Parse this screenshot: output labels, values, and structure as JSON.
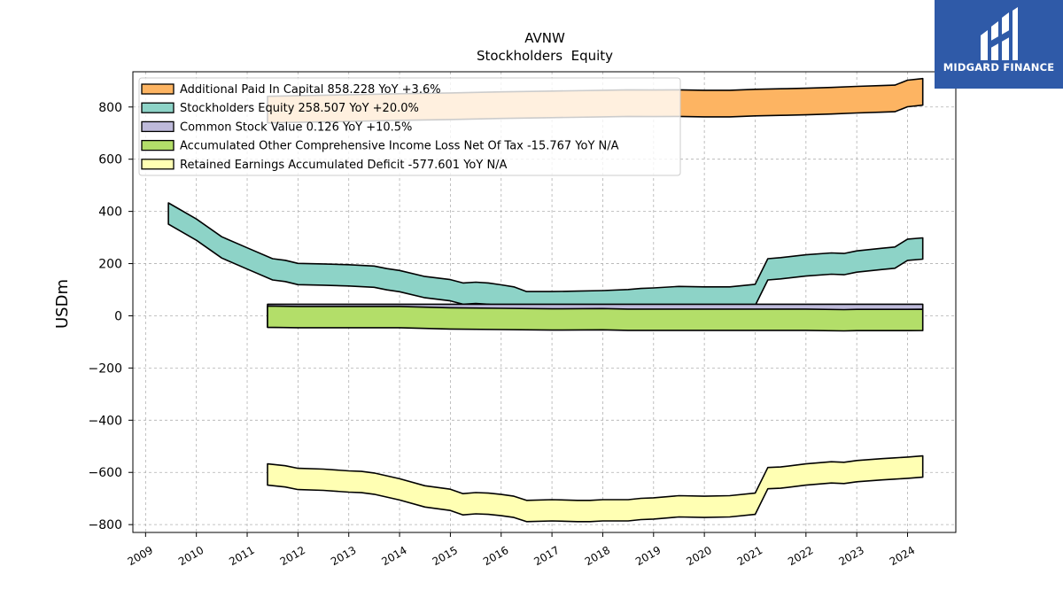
{
  "brand": {
    "name": "MIDGARD FINANCE",
    "color": "#2f5aa8"
  },
  "chart_data": {
    "type": "area",
    "title": "AVNW",
    "subtitle": "Stockholders  Equity",
    "xlabel": "",
    "ylabel": "USDm",
    "xlim": [
      2008.75,
      2024.95
    ],
    "ylim": [
      -830,
      935
    ],
    "yticks": [
      800,
      600,
      400,
      200,
      0,
      -200,
      -400,
      -600,
      -800
    ],
    "ytick_labels": [
      "800",
      "600",
      "400",
      "200",
      "0",
      "−200",
      "−400",
      "−600",
      "−800"
    ],
    "xticks": [
      2009,
      2010,
      2011,
      2012,
      2013,
      2014,
      2015,
      2016,
      2017,
      2018,
      2019,
      2020,
      2021,
      2022,
      2023,
      2024
    ],
    "xtick_labels": [
      "2009",
      "2010",
      "2011",
      "2012",
      "2013",
      "2014",
      "2015",
      "2016",
      "2017",
      "2018",
      "2019",
      "2020",
      "2021",
      "2022",
      "2023",
      "2024"
    ],
    "grid": true,
    "legend_position": "top-left",
    "series": [
      {
        "name": "Additional Paid In Capital",
        "legend": "Additional Paid In Capital  858.228 YoY +3.6%",
        "color": "#fdb462",
        "points": [
          [
            2011.4,
            790
          ],
          [
            2012.0,
            792
          ],
          [
            2013.0,
            796
          ],
          [
            2014.0,
            800
          ],
          [
            2015.0,
            803
          ],
          [
            2016.0,
            807
          ],
          [
            2017.0,
            810
          ],
          [
            2018.0,
            813
          ],
          [
            2018.5,
            815
          ],
          [
            2019.0,
            814
          ],
          [
            2019.5,
            815
          ],
          [
            2020.0,
            813
          ],
          [
            2020.5,
            813
          ],
          [
            2021.0,
            817
          ],
          [
            2021.5,
            819
          ],
          [
            2022.0,
            821
          ],
          [
            2022.5,
            824
          ],
          [
            2023.0,
            828
          ],
          [
            2023.5,
            831
          ],
          [
            2023.75,
            833
          ],
          [
            2024.0,
            852
          ],
          [
            2024.3,
            858
          ]
        ],
        "thickness": 30
      },
      {
        "name": "Stockholders Equity",
        "legend": "Stockholders Equity  258.507 YoY +20.0%",
        "color": "#8dd3c7",
        "points": [
          [
            2009.45,
            392
          ],
          [
            2010.0,
            330
          ],
          [
            2010.5,
            262
          ],
          [
            2011.0,
            220
          ],
          [
            2011.5,
            178
          ],
          [
            2011.75,
            172
          ],
          [
            2012.0,
            160
          ],
          [
            2012.5,
            158
          ],
          [
            2013.0,
            155
          ],
          [
            2013.5,
            150
          ],
          [
            2013.75,
            140
          ],
          [
            2014.0,
            133
          ],
          [
            2014.5,
            110
          ],
          [
            2015.0,
            98
          ],
          [
            2015.25,
            85
          ],
          [
            2015.5,
            88
          ],
          [
            2015.75,
            85
          ],
          [
            2016.0,
            78
          ],
          [
            2016.25,
            70
          ],
          [
            2016.5,
            52
          ],
          [
            2017.0,
            52
          ],
          [
            2017.5,
            54
          ],
          [
            2018.0,
            56
          ],
          [
            2018.5,
            60
          ],
          [
            2018.75,
            64
          ],
          [
            2019.0,
            66
          ],
          [
            2019.5,
            72
          ],
          [
            2020.0,
            70
          ],
          [
            2020.5,
            70
          ],
          [
            2021.0,
            80
          ],
          [
            2021.25,
            178
          ],
          [
            2021.5,
            182
          ],
          [
            2022.0,
            193
          ],
          [
            2022.5,
            200
          ],
          [
            2022.75,
            198
          ],
          [
            2023.0,
            208
          ],
          [
            2023.5,
            218
          ],
          [
            2023.75,
            223
          ],
          [
            2024.0,
            253
          ],
          [
            2024.3,
            258
          ]
        ],
        "thickness": 24
      },
      {
        "name": "Common Stock Value",
        "legend": "Common Stock Value  0.126 YoY +10.5%",
        "color": "#bebada",
        "points": [
          [
            2011.4,
            0.1
          ],
          [
            2024.3,
            0.126
          ]
        ],
        "thickness": 26
      },
      {
        "name": "Accumulated Other Comprehensive Income Loss Net Of Tax",
        "legend": "Accumulated Other Comprehensive Income Loss Net Of Tax  -15.767 YoY N/A",
        "color": "#b3de69",
        "points": [
          [
            2011.4,
            -3
          ],
          [
            2012.0,
            -5
          ],
          [
            2013.0,
            -5
          ],
          [
            2014.0,
            -5
          ],
          [
            2015.0,
            -10
          ],
          [
            2016.0,
            -12
          ],
          [
            2017.0,
            -14
          ],
          [
            2018.0,
            -13
          ],
          [
            2018.5,
            -15
          ],
          [
            2019.0,
            -15
          ],
          [
            2020.0,
            -15
          ],
          [
            2021.0,
            -15
          ],
          [
            2022.0,
            -15
          ],
          [
            2022.75,
            -17
          ],
          [
            2023.0,
            -16
          ],
          [
            2024.0,
            -16
          ],
          [
            2024.3,
            -15.767
          ]
        ],
        "thickness": 24
      },
      {
        "name": "Retained Earnings Accumulated Deficit",
        "legend": "Retained Earnings Accumulated Deficit  -577.601 YoY N/A",
        "color": "#ffffb3",
        "points": [
          [
            2011.4,
            -608
          ],
          [
            2011.75,
            -615
          ],
          [
            2012.0,
            -625
          ],
          [
            2012.5,
            -628
          ],
          [
            2013.0,
            -635
          ],
          [
            2013.25,
            -637
          ],
          [
            2013.5,
            -643
          ],
          [
            2014.0,
            -665
          ],
          [
            2014.5,
            -692
          ],
          [
            2015.0,
            -705
          ],
          [
            2015.25,
            -722
          ],
          [
            2015.5,
            -718
          ],
          [
            2015.75,
            -720
          ],
          [
            2016.0,
            -725
          ],
          [
            2016.25,
            -732
          ],
          [
            2016.5,
            -748
          ],
          [
            2017.0,
            -745
          ],
          [
            2017.5,
            -748
          ],
          [
            2017.75,
            -748
          ],
          [
            2018.0,
            -745
          ],
          [
            2018.5,
            -745
          ],
          [
            2018.75,
            -740
          ],
          [
            2019.0,
            -738
          ],
          [
            2019.5,
            -730
          ],
          [
            2020.0,
            -732
          ],
          [
            2020.5,
            -730
          ],
          [
            2021.0,
            -720
          ],
          [
            2021.25,
            -622
          ],
          [
            2021.5,
            -620
          ],
          [
            2022.0,
            -608
          ],
          [
            2022.5,
            -600
          ],
          [
            2022.75,
            -602
          ],
          [
            2023.0,
            -595
          ],
          [
            2023.5,
            -588
          ],
          [
            2023.75,
            -585
          ],
          [
            2024.0,
            -582
          ],
          [
            2024.3,
            -577.601
          ]
        ],
        "thickness": 24
      }
    ]
  }
}
